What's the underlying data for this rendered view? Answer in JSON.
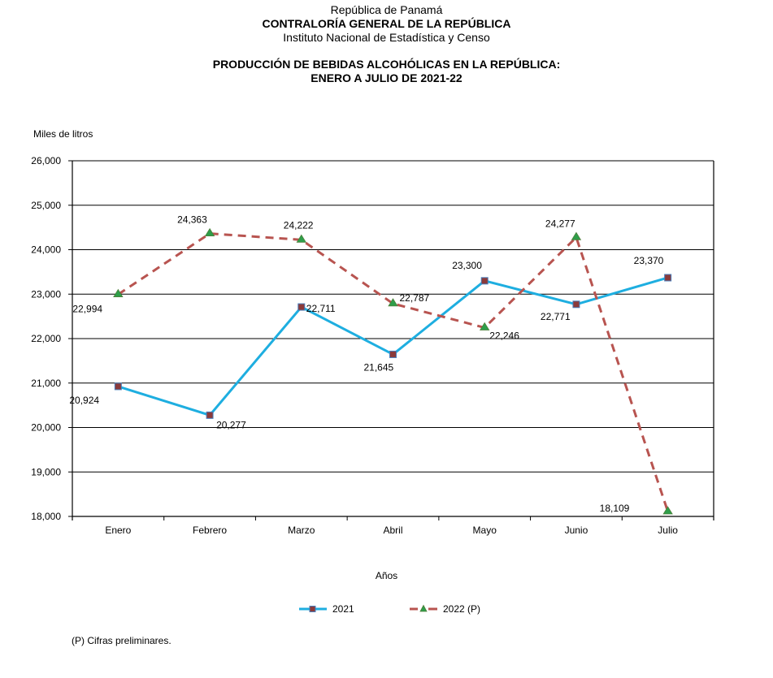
{
  "header": {
    "line1": "República de Panamá",
    "line2": "CONTRALORÍA GENERAL DE LA REPÚBLICA",
    "line3": "Instituto Nacional de Estadística y Censo",
    "title1": "PRODUCCIÓN DE BEBIDAS ALCOHÓLICAS EN LA REPÚBLICA:",
    "title2": "ENERO A JULIO DE 2021-22"
  },
  "footnote": "(P) Cifras  preliminares.",
  "chart_data": {
    "type": "line",
    "title": "PRODUCCIÓN DE BEBIDAS ALCOHÓLICAS EN LA REPÚBLICA: ENERO A JULIO DE 2021-22",
    "xlabel": "Años",
    "ylabel": "Miles de litros",
    "categories": [
      "Enero",
      "Febrero",
      "Marzo",
      "Abril",
      "Mayo",
      "Junio",
      "Julio"
    ],
    "ylim": [
      18000,
      26000
    ],
    "yticks": [
      18000,
      19000,
      20000,
      21000,
      22000,
      23000,
      24000,
      25000,
      26000
    ],
    "ytick_labels": [
      "18,000",
      "19,000",
      "20,000",
      "21,000",
      "22,000",
      "23,000",
      "24,000",
      "25,000",
      "26,000"
    ],
    "grid": true,
    "legend_position": "bottom-center",
    "series": [
      {
        "name": "2021",
        "values": [
          20924,
          20277,
          22711,
          21645,
          23300,
          22771,
          23370
        ],
        "labels": [
          "20,924",
          "20,277",
          "22,711",
          "21,645",
          "23,300",
          "22,771",
          "23,370"
        ],
        "line_color": "#1EAEE0",
        "line_style": "solid",
        "marker": "square",
        "marker_fill": "#8B3A3A",
        "marker_edge": "#4A7EBB"
      },
      {
        "name": "2022 (P)",
        "values": [
          22994,
          24363,
          24222,
          22787,
          22246,
          24277,
          18109
        ],
        "labels": [
          "22,994",
          "24,363",
          "24,222",
          "22,787",
          "22,246",
          "24,277",
          "18,109"
        ],
        "line_color": "#B85450",
        "line_style": "dashed",
        "marker": "triangle",
        "marker_fill": "#2E9E4A",
        "marker_edge": "#4F7F3A"
      }
    ]
  }
}
